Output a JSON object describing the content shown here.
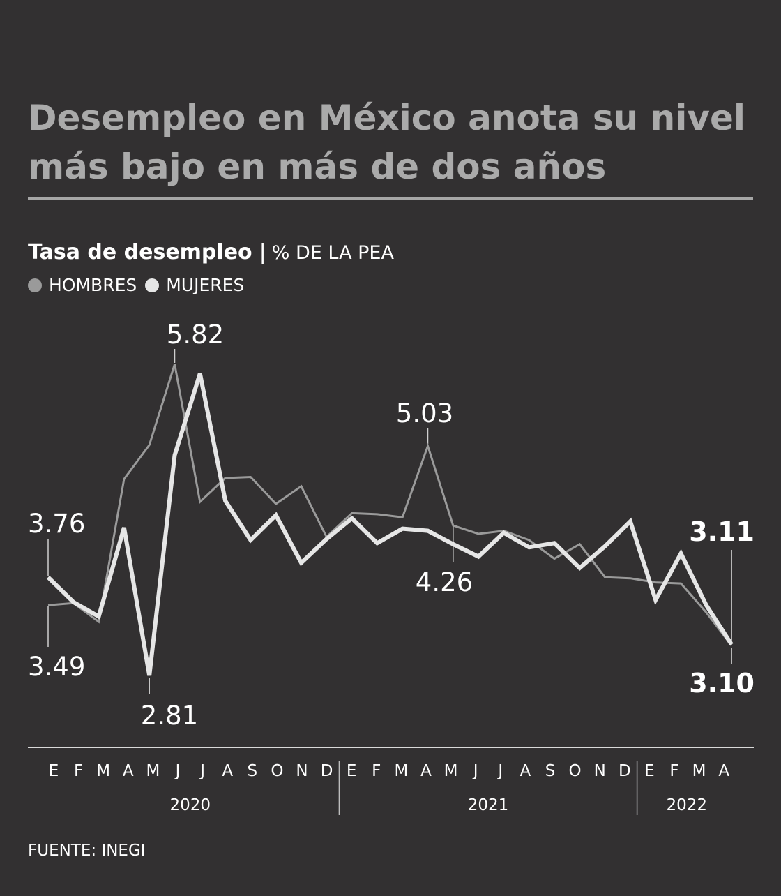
{
  "title": "Desempleo en México anota su nivel más bajo en más de dos años",
  "subtitle": {
    "main": "Tasa de desempleo",
    "separator": "|",
    "unit": "% DE LA PEA"
  },
  "legend": [
    {
      "label": "HOMBRES",
      "color": "#9a9a9a"
    },
    {
      "label": "MUJERES",
      "color": "#e6e6e6"
    }
  ],
  "source": "FUENTE: INEGI",
  "chart_data": {
    "type": "line",
    "title": "Tasa de desempleo",
    "ylabel": "% DE LA PEA",
    "ylim": [
      2.6,
      6.1
    ],
    "grid": false,
    "legend_position": "top-left",
    "x": [
      "E",
      "F",
      "M",
      "A",
      "M",
      "J",
      "J",
      "A",
      "S",
      "O",
      "N",
      "D",
      "E",
      "F",
      "M",
      "A",
      "M",
      "J",
      "J",
      "A",
      "S",
      "O",
      "N",
      "D",
      "E",
      "F",
      "M",
      "A"
    ],
    "years": [
      {
        "label": "2020",
        "months": 12
      },
      {
        "label": "2021",
        "months": 12
      },
      {
        "label": "2022",
        "months": 4
      }
    ],
    "series": [
      {
        "name": "HOMBRES",
        "color": "#9a9a9a",
        "values": [
          3.49,
          3.51,
          3.33,
          4.71,
          5.04,
          5.82,
          4.49,
          4.72,
          4.73,
          4.47,
          4.64,
          4.15,
          4.38,
          4.37,
          4.34,
          5.03,
          4.26,
          4.18,
          4.21,
          4.12,
          3.94,
          4.08,
          3.76,
          3.75,
          3.71,
          3.7,
          3.42,
          3.1
        ]
      },
      {
        "name": "MUJERES",
        "color": "#e6e6e6",
        "values": [
          3.76,
          3.52,
          3.38,
          4.24,
          2.81,
          4.94,
          5.73,
          4.5,
          4.12,
          4.36,
          3.9,
          4.13,
          4.33,
          4.09,
          4.23,
          4.21,
          4.08,
          3.96,
          4.19,
          4.05,
          4.09,
          3.85,
          4.06,
          4.3,
          3.54,
          3.99,
          3.49,
          3.11
        ]
      }
    ],
    "annotations": [
      {
        "label": "3.76",
        "series": "MUJERES",
        "index": 0
      },
      {
        "label": "3.49",
        "series": "HOMBRES",
        "index": 0
      },
      {
        "label": "5.82",
        "series": "HOMBRES",
        "index": 5
      },
      {
        "label": "2.81",
        "series": "MUJERES",
        "index": 4
      },
      {
        "label": "5.03",
        "series": "HOMBRES",
        "index": 15
      },
      {
        "label": "4.26",
        "series": "HOMBRES",
        "index": 16
      },
      {
        "label": "3.11",
        "series": "MUJERES",
        "index": 27
      },
      {
        "label": "3.10",
        "series": "HOMBRES",
        "index": 27
      }
    ]
  }
}
